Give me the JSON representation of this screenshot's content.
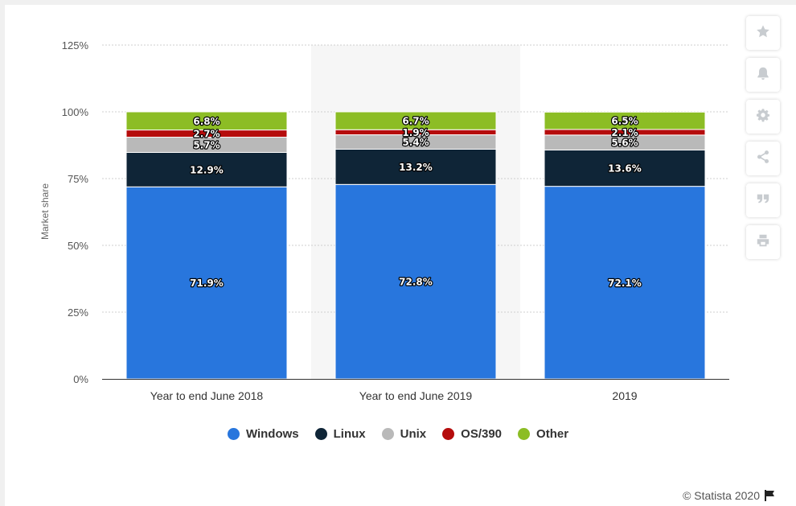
{
  "chart_data": {
    "type": "bar",
    "stacked": true,
    "categories": [
      "Year to end June 2018",
      "Year to end June 2019",
      "2019"
    ],
    "series": [
      {
        "name": "Windows",
        "color": "#2876dd",
        "values": [
          71.9,
          72.8,
          72.1
        ]
      },
      {
        "name": "Linux",
        "color": "#0f2537",
        "values": [
          12.9,
          13.2,
          13.6
        ]
      },
      {
        "name": "Unix",
        "color": "#b9b9b9",
        "values": [
          5.7,
          5.4,
          5.6
        ]
      },
      {
        "name": "OS/390",
        "color": "#b50c0c",
        "values": [
          2.7,
          1.9,
          2.1
        ]
      },
      {
        "name": "Other",
        "color": "#8cbd25",
        "values": [
          6.8,
          6.7,
          6.5
        ]
      }
    ],
    "ylabel": "Market share",
    "ylim": [
      0,
      125
    ],
    "yticks": [
      "0%",
      "25%",
      "50%",
      "75%",
      "100%",
      "125%"
    ],
    "grid": true,
    "legend_position": "bottom",
    "highlighted_category": "Year to end June 2019"
  },
  "toolbar": {
    "buttons": [
      {
        "name": "favorite",
        "icon": "star-icon"
      },
      {
        "name": "notifications",
        "icon": "bell-icon"
      },
      {
        "name": "settings",
        "icon": "gear-icon"
      },
      {
        "name": "share",
        "icon": "share-icon"
      },
      {
        "name": "cite",
        "icon": "quote-icon"
      },
      {
        "name": "print",
        "icon": "print-icon"
      }
    ]
  },
  "credit": {
    "text": "© Statista 2020",
    "icon": "flag-icon"
  }
}
